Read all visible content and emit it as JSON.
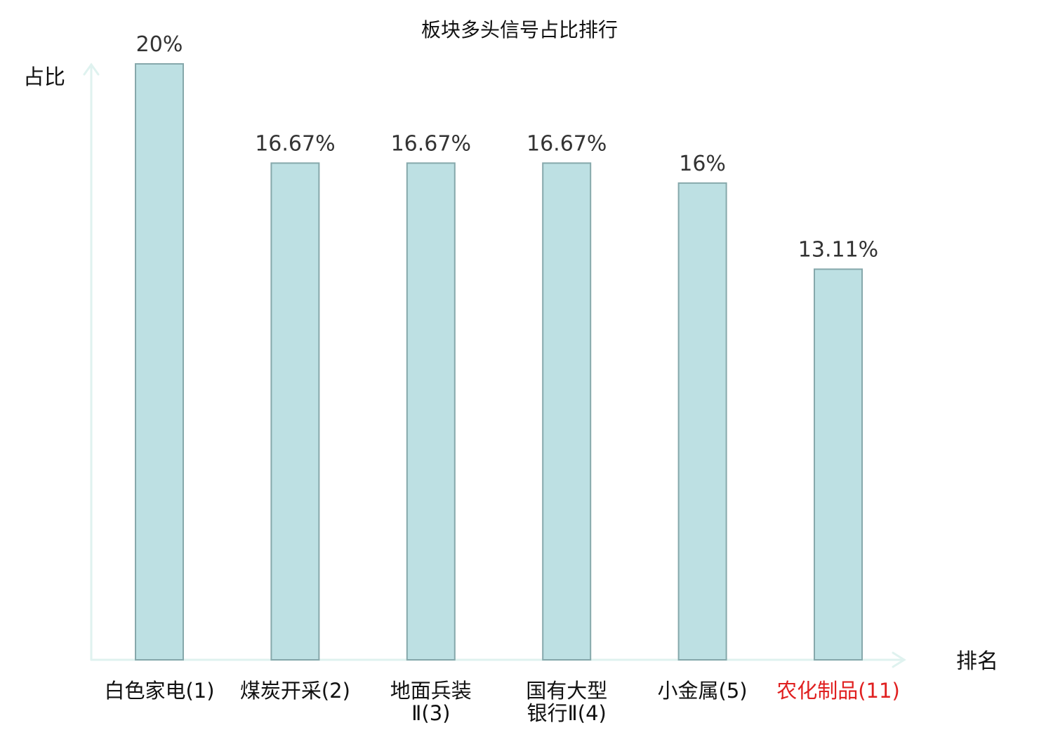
{
  "chart_data": {
    "type": "bar",
    "title": "板块多头信号占比排行",
    "ylabel": "占比",
    "xlabel": "排名",
    "ylim": [
      0,
      20
    ],
    "grid": false,
    "legend": "none",
    "categories": [
      {
        "name": "白色家电",
        "rank": "(1)",
        "lines": [
          "白色家电(1)"
        ],
        "highlight": false
      },
      {
        "name": "煤炭开采",
        "rank": "(2)",
        "lines": [
          "煤炭开采(2)"
        ],
        "highlight": false
      },
      {
        "name": "地面兵装Ⅱ",
        "rank": "(3)",
        "lines": [
          "地面兵装",
          "Ⅱ(3)"
        ],
        "highlight": false
      },
      {
        "name": "国有大型银行Ⅱ",
        "rank": "(4)",
        "lines": [
          "国有大型",
          "银行Ⅱ(4)"
        ],
        "highlight": false
      },
      {
        "name": "小金属",
        "rank": "(5)",
        "lines": [
          "小金属(5)"
        ],
        "highlight": false
      },
      {
        "name": "农化制品",
        "rank": "(11)",
        "lines": [
          "农化制品(11)"
        ],
        "highlight": true
      }
    ],
    "values": [
      20,
      16.67,
      16.67,
      16.67,
      16,
      13.11
    ],
    "value_labels": [
      "20%",
      "16.67%",
      "16.67%",
      "16.67%",
      "16%",
      "13.11%"
    ]
  },
  "colors": {
    "bar_fill": "#bde0e3",
    "bar_stroke": "#86a8ab",
    "axis": "#dff2ef",
    "text": "#111111",
    "value_text": "#333333",
    "rank_text": "#444444",
    "highlight": "#e02020"
  }
}
